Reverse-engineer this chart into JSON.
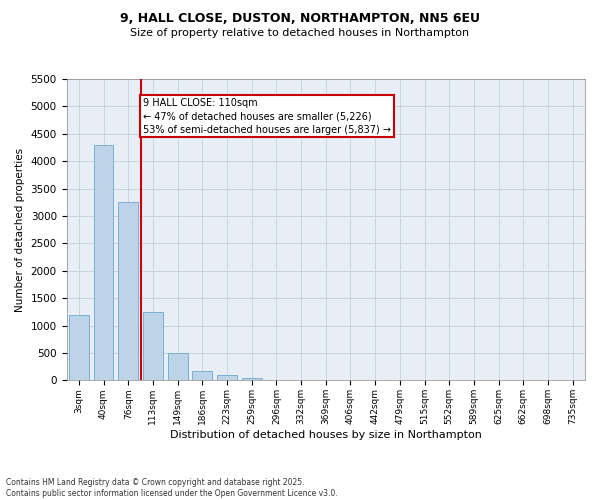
{
  "title_line1": "9, HALL CLOSE, DUSTON, NORTHAMPTON, NN5 6EU",
  "title_line2": "Size of property relative to detached houses in Northampton",
  "xlabel": "Distribution of detached houses by size in Northampton",
  "ylabel": "Number of detached properties",
  "categories": [
    "3sqm",
    "40sqm",
    "76sqm",
    "113sqm",
    "149sqm",
    "186sqm",
    "223sqm",
    "259sqm",
    "296sqm",
    "332sqm",
    "369sqm",
    "406sqm",
    "442sqm",
    "479sqm",
    "515sqm",
    "552sqm",
    "589sqm",
    "625sqm",
    "662sqm",
    "698sqm",
    "735sqm"
  ],
  "values": [
    1200,
    4300,
    3250,
    1250,
    500,
    175,
    100,
    50,
    10,
    0,
    0,
    0,
    0,
    0,
    0,
    0,
    0,
    0,
    0,
    0,
    0
  ],
  "bar_color": "#bdd4e8",
  "bar_edge_color": "#7aafd4",
  "vline_color": "#cc0000",
  "vline_x": 2.5,
  "annotation_text": "9 HALL CLOSE: 110sqm\n← 47% of detached houses are smaller (5,226)\n53% of semi-detached houses are larger (5,837) →",
  "box_color": "#cc0000",
  "ylim": [
    0,
    5500
  ],
  "yticks": [
    0,
    500,
    1000,
    1500,
    2000,
    2500,
    3000,
    3500,
    4000,
    4500,
    5000,
    5500
  ],
  "footer_line1": "Contains HM Land Registry data © Crown copyright and database right 2025.",
  "footer_line2": "Contains public sector information licensed under the Open Government Licence v3.0.",
  "grid_color": "#c8d4e0",
  "background_color": "#e8eef5"
}
